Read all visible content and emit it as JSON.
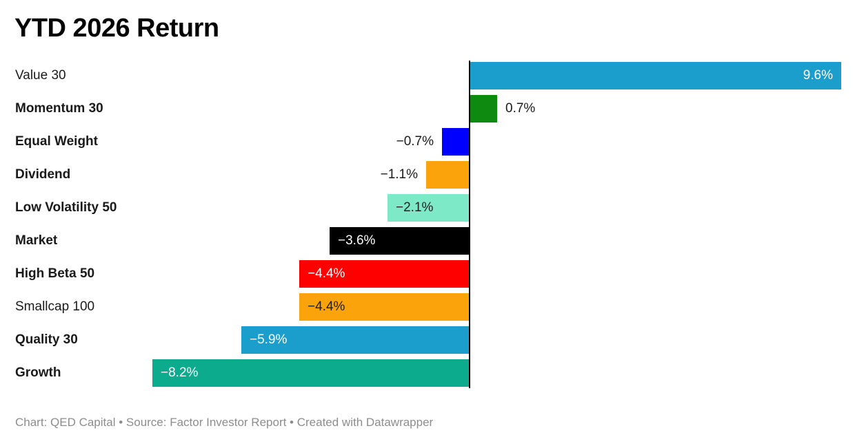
{
  "title": "YTD 2026 Return",
  "footer": "Chart: QED Capital • Source: Factor Investor Report • Created with Datawrapper",
  "chart_data": {
    "type": "bar",
    "orientation": "horizontal",
    "title": "YTD 2026 Return",
    "unit": "%",
    "baseline": 0,
    "xlim": [
      -8.2,
      9.6
    ],
    "grid": "off",
    "legend": "none",
    "categories": [
      "Value 30",
      "Momentum 30",
      "Equal Weight",
      "Dividend",
      "Low Volatility 50",
      "Market",
      "High Beta 50",
      "Smallcap 100",
      "Quality 30",
      "Growth"
    ],
    "values": [
      9.6,
      0.7,
      -0.7,
      -1.1,
      -2.1,
      -3.6,
      -4.4,
      -4.4,
      -5.9,
      -8.2
    ],
    "value_labels": [
      "9.6%",
      "0.7%",
      "−0.7%",
      "−1.1%",
      "−2.1%",
      "−3.6%",
      "−4.4%",
      "−4.4%",
      "−5.9%",
      "−8.2%"
    ],
    "bar_colors": [
      "#1c9ecd",
      "#0e8a10",
      "#0000fe",
      "#fba30a",
      "#7de9c6",
      "#000000",
      "#fe0000",
      "#fba30a",
      "#1c9ecd",
      "#0cab8d"
    ],
    "category_bold": [
      false,
      true,
      true,
      true,
      true,
      true,
      true,
      false,
      true,
      true
    ],
    "value_label_placement": [
      "inside-right",
      "outside-right",
      "outside-left",
      "outside-left",
      "inside-left",
      "inside-left",
      "inside-left",
      "inside-left",
      "inside-left",
      "inside-left"
    ],
    "value_label_colors": [
      "#ffffff",
      "#1a1a1a",
      "#1a1a1a",
      "#1a1a1a",
      "#1f1f1f",
      "#ffffff",
      "#ffffff",
      "#1f1f1f",
      "#ffffff",
      "#ffffff"
    ]
  }
}
